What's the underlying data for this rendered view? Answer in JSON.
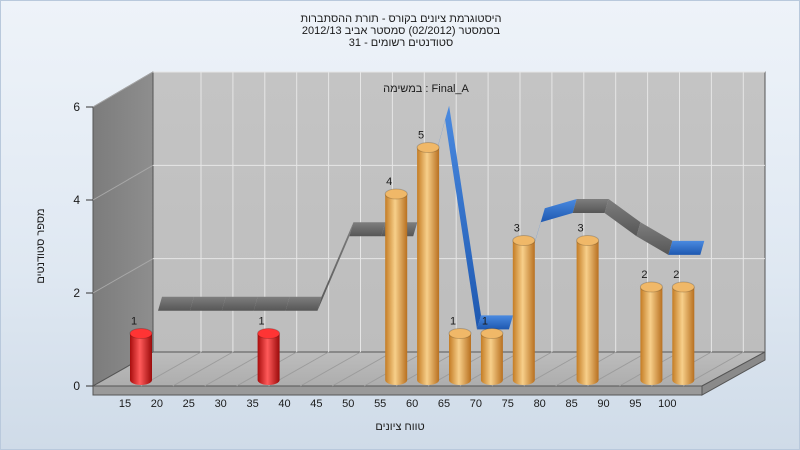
{
  "chart_data": {
    "type": "bar",
    "title_lines": [
      "היסטוגרמת ציונים בקורס - תורת ההסתברות",
      "בסמסטר  (02/2012)  סמסטר אביב 2012/13",
      "סטודנטים רשומים - 31"
    ],
    "subtitle": "במשימה : Final_A",
    "xlabel": "טווח ציונים",
    "ylabel": "מספר סטודנטים",
    "ylim": [
      0,
      6
    ],
    "yticks": [
      "0",
      "2",
      "4",
      "6"
    ],
    "xticks": [
      "15",
      "20",
      "25",
      "30",
      "35",
      "40",
      "45",
      "50",
      "55",
      "60",
      "65",
      "70",
      "75",
      "80",
      "85",
      "90",
      "95",
      "100"
    ],
    "series": [
      {
        "color": "#d81818",
        "points": [
          {
            "x": "15",
            "value": 1
          },
          {
            "x": "35",
            "value": 1
          }
        ]
      },
      {
        "color": "#e8a848",
        "points": [
          {
            "x": "55",
            "value": 4
          },
          {
            "x": "60",
            "value": 5
          },
          {
            "x": "65",
            "value": 1
          },
          {
            "x": "70",
            "value": 1
          },
          {
            "x": "75",
            "value": 3
          },
          {
            "x": "85",
            "value": 3
          },
          {
            "x": "95",
            "value": 2
          },
          {
            "x": "100",
            "value": 2
          }
        ]
      }
    ],
    "trend_ribbon": {
      "colors": {
        "gray": "#6e6e6e",
        "blue": "#2a6cc8"
      },
      "values": [
        1.4,
        1.4,
        1.4,
        1.4,
        1.4,
        1.4,
        3.0,
        3.0,
        3.0,
        5.5,
        1.0,
        1.0,
        3.3,
        3.5,
        3.5,
        3.0,
        2.6,
        2.6
      ]
    },
    "grid": true
  }
}
